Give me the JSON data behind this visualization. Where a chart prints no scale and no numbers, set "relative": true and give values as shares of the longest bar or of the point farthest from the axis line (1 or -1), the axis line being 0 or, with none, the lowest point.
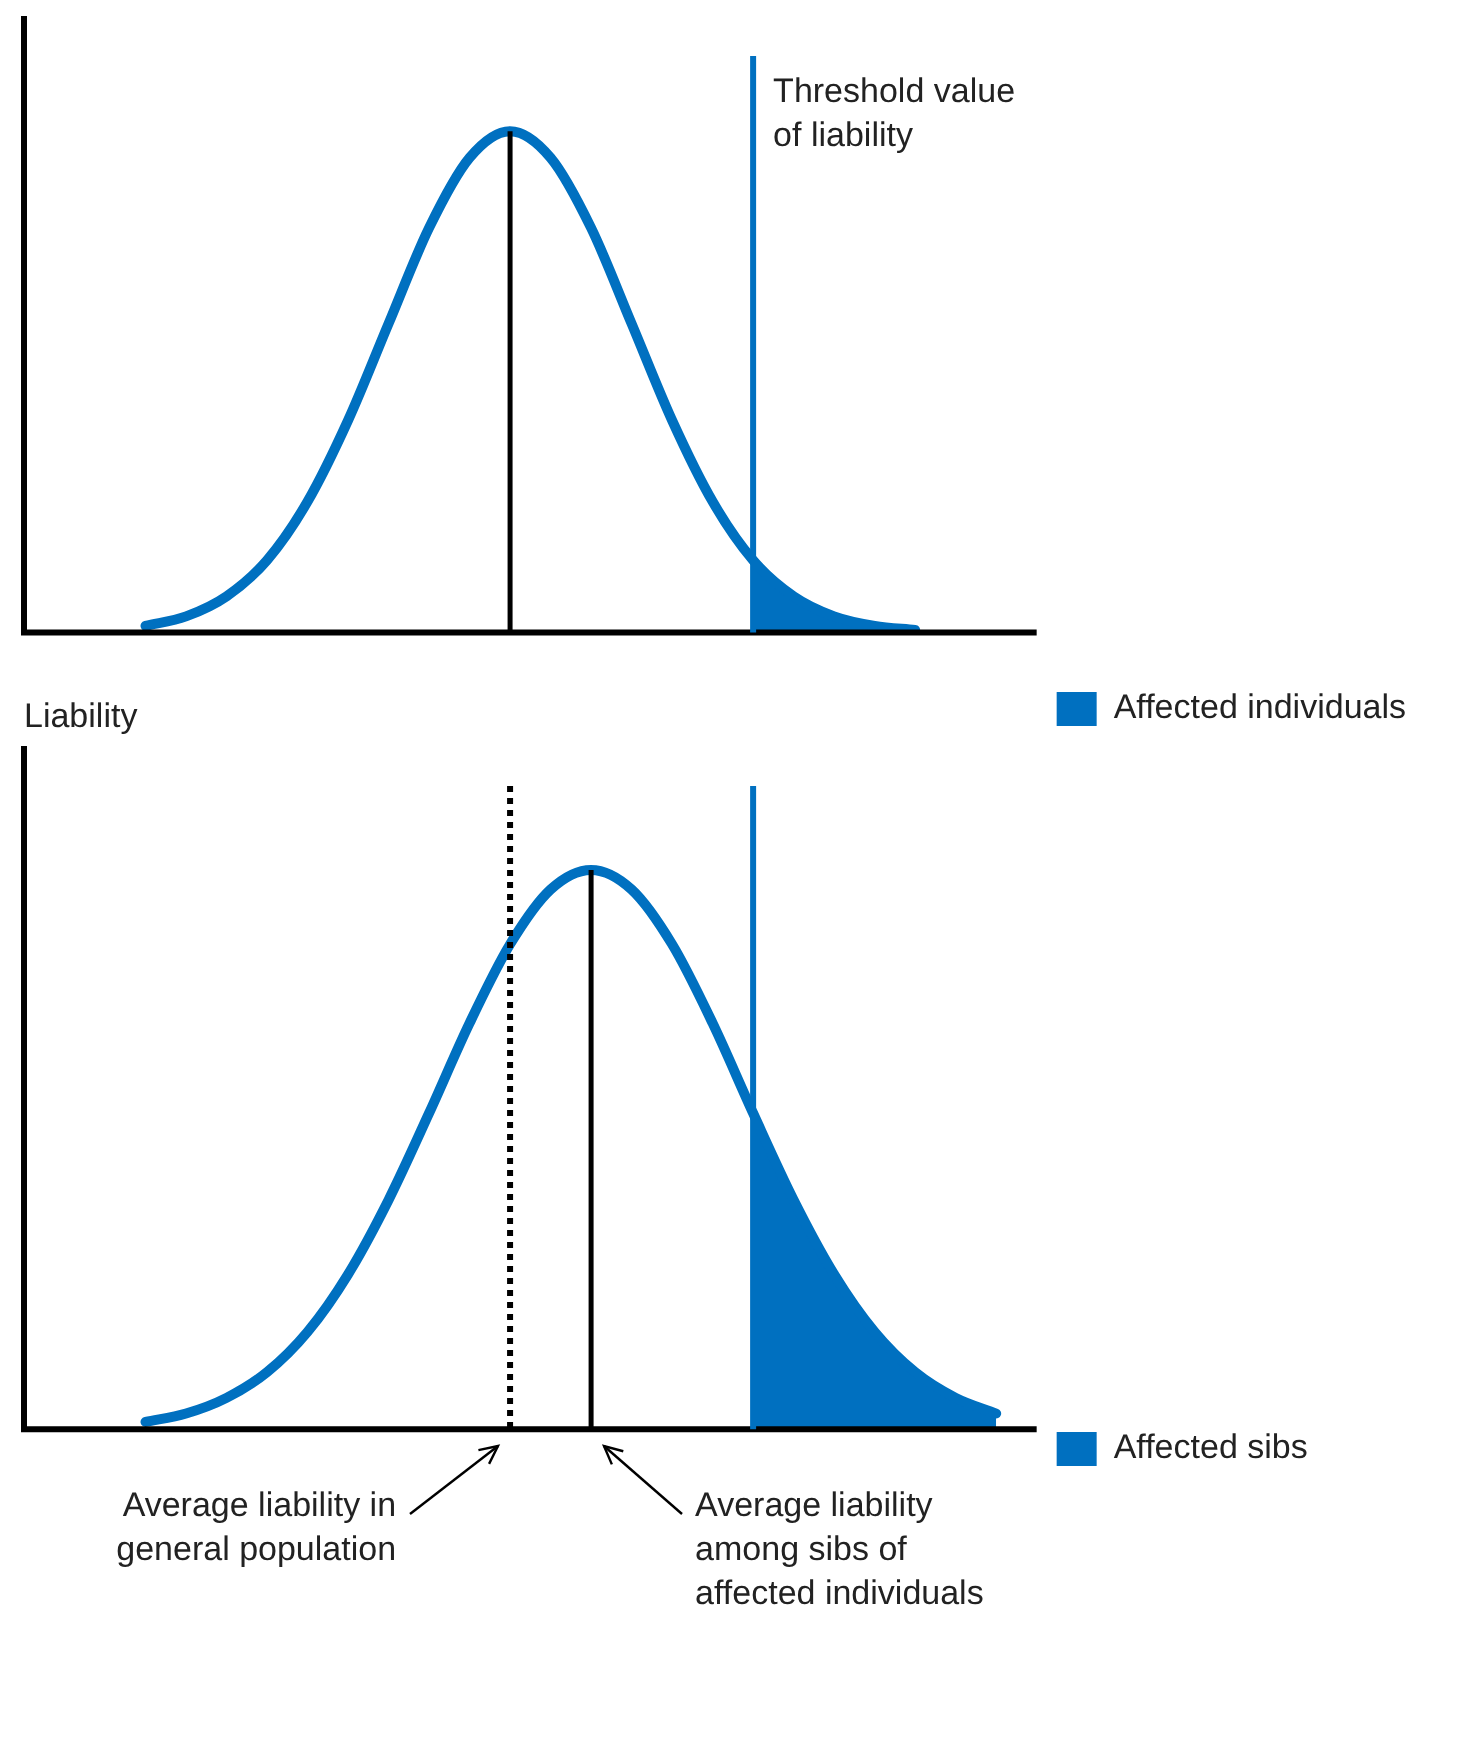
{
  "chart_data": [
    {
      "type": "line",
      "relative": true,
      "xlabel": "Liability",
      "marker": "none",
      "legend": "bottom right",
      "categories": [
        null,
        null,
        null,
        null,
        null,
        null,
        null,
        null,
        null,
        null,
        null,
        null,
        null,
        null,
        null,
        null,
        null,
        null,
        null,
        null,
        null,
        null,
        null,
        null,
        null,
        null
      ],
      "series": [
        {
          "color": "#0070c0",
          "values": [
            null,
            null,
            null,
            0.013,
            0.032,
            0.072,
            0.144,
            0.261,
            0.423,
            0.616,
            0.807,
            0.947,
            1,
            0.947,
            0.807,
            0.616,
            0.423,
            0.261,
            0.144,
            0.072,
            0.032,
            0.013,
            0.005,
            null,
            null,
            null
          ]
        },
        {
          "type": "area",
          "name": "Affected individuals",
          "color": "#0070c0",
          "values": [
            null,
            null,
            null,
            null,
            null,
            null,
            null,
            null,
            null,
            null,
            null,
            null,
            null,
            null,
            null,
            null,
            null,
            null,
            0.144,
            0.072,
            0.032,
            0.013,
            0.005,
            null,
            null,
            null
          ]
        }
      ],
      "annotations": [
        "Threshold value of liability"
      ]
    },
    {
      "type": "line",
      "relative": true,
      "marker": "none",
      "legend": "bottom right",
      "categories": [
        null,
        null,
        null,
        null,
        null,
        null,
        null,
        null,
        null,
        null,
        null,
        null,
        null,
        null,
        null,
        null,
        null,
        null,
        null,
        null,
        null,
        null,
        null,
        null,
        null,
        null
      ],
      "series": [
        {
          "color": "#0070c0",
          "values": [
            null,
            null,
            null,
            0.013,
            0.028,
            0.056,
            0.102,
            0.174,
            0.277,
            0.41,
            0.565,
            0.726,
            0.867,
            0.965,
            1,
            0.965,
            0.867,
            0.726,
            0.565,
            0.41,
            0.277,
            0.174,
            0.102,
            0.056,
            0.028,
            null
          ]
        },
        {
          "type": "area",
          "name": "Affected sibs",
          "color": "#0070c0",
          "values": [
            null,
            null,
            null,
            null,
            null,
            null,
            null,
            null,
            null,
            null,
            null,
            null,
            null,
            null,
            null,
            null,
            null,
            null,
            0.565,
            0.41,
            0.277,
            0.174,
            0.102,
            0.056,
            0.028,
            null
          ]
        }
      ],
      "annotations": [
        "Average liability in general population",
        "Average liability among sibs of affected individuals"
      ]
    }
  ]
}
